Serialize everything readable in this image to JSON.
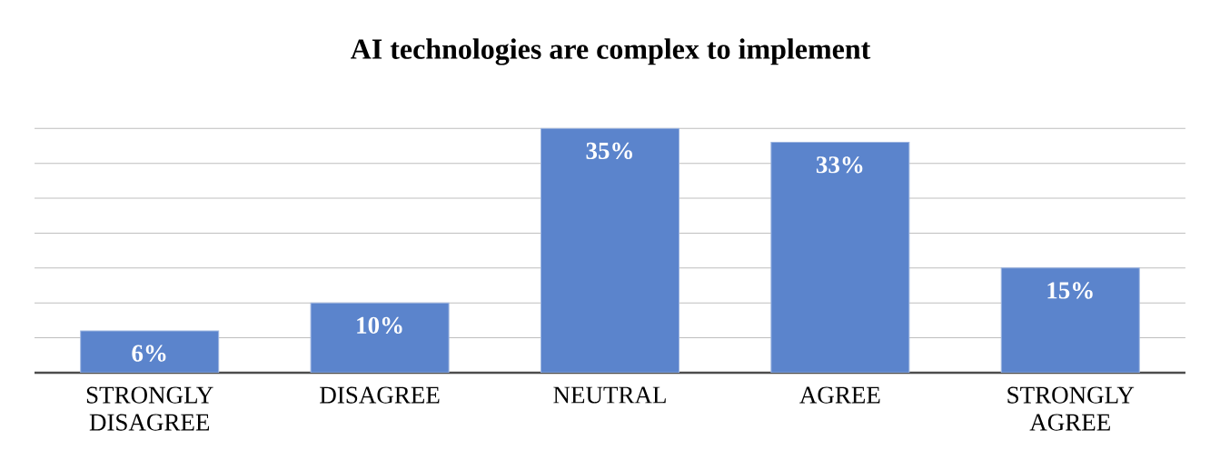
{
  "chart_data": {
    "type": "bar",
    "title": "AI technologies are complex to implement",
    "categories": [
      "STRONGLY DISAGREE",
      "DISAGREE",
      "NEUTRAL",
      "AGREE",
      "STRONGLY AGREE"
    ],
    "values": [
      6,
      10,
      35,
      33,
      15
    ],
    "value_labels": [
      "6%",
      "10%",
      "35%",
      "33%",
      "15%"
    ],
    "color": "#5b84cc",
    "grid": "y",
    "tick_labels": "x"
  }
}
